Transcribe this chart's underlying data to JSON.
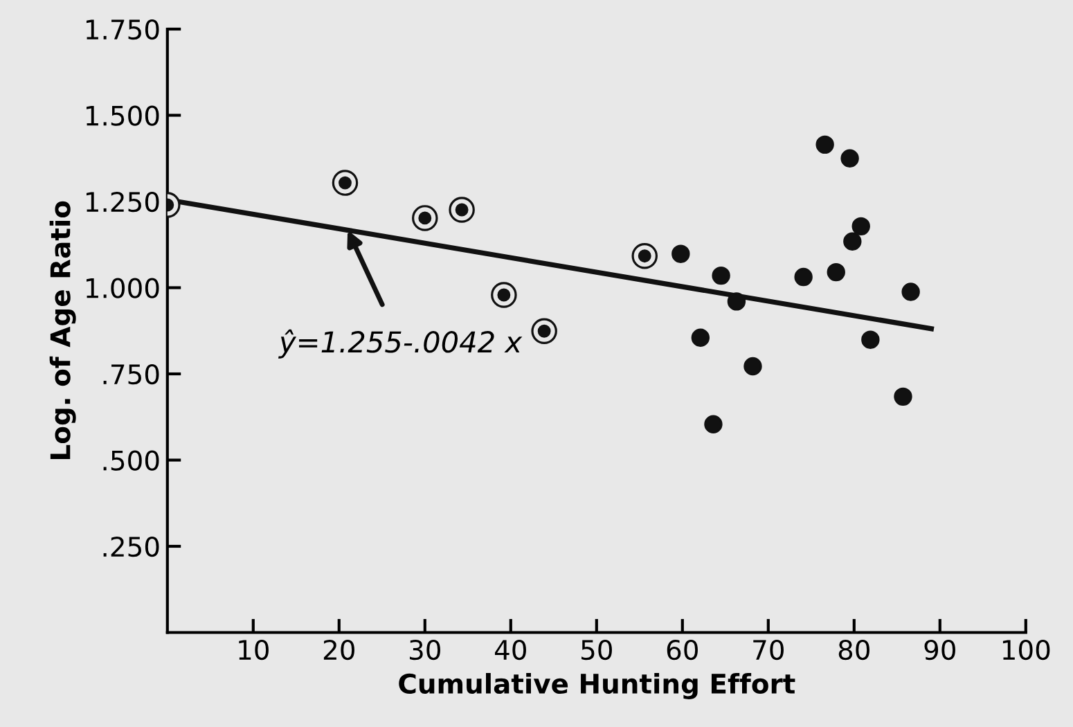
{
  "chart_data": {
    "type": "scatter",
    "xlabel": "Cumulative Hunting Effort",
    "ylabel": "Log. of Age Ratio",
    "series": [
      {
        "marker": "circle",
        "color": "#111111",
        "x": [
          0,
          20.7,
          30.0,
          34.3,
          39.2,
          43.9,
          55.6
        ],
        "values": [
          1.24,
          1.304,
          1.202,
          1.226,
          0.979,
          0.874,
          1.092
        ]
      },
      {
        "marker": "circle",
        "color": "#111111",
        "x": [
          59.8,
          62.1,
          63.6,
          64.5,
          66.3,
          68.2,
          74.1,
          76.6,
          77.9,
          79.5,
          79.8,
          80.8,
          81.9,
          85.7,
          86.6
        ],
        "values": [
          1.098,
          0.855,
          0.604,
          1.035,
          0.96,
          0.772,
          1.031,
          1.415,
          1.045,
          1.375,
          1.134,
          1.178,
          0.849,
          0.684,
          0.988
        ]
      },
      {
        "type": "line",
        "color": "#111111",
        "line_style": "solid",
        "marker": "none",
        "x": [
          0,
          89
        ],
        "values": [
          1.255,
          0.881
        ]
      }
    ],
    "annotations": [
      {
        "text": "ŷ=1.255-.0042 x",
        "x": 21,
        "y": 1.167
      }
    ],
    "xlim": [
      0,
      100
    ],
    "xticks": [
      10,
      20,
      30,
      40,
      50,
      60,
      70,
      80,
      90,
      100
    ],
    "ylim": [
      0,
      1.75
    ],
    "yticks": [
      {
        "value": 0.25,
        "label": ".250"
      },
      {
        "value": 0.5,
        "label": ".500"
      },
      {
        "value": 0.75,
        "label": ".750"
      },
      {
        "value": 1.0,
        "label": "1.000"
      },
      {
        "value": 1.25,
        "label": "1.250"
      },
      {
        "value": 1.5,
        "label": "1.500"
      },
      {
        "value": 1.75,
        "label": "1.750"
      }
    ],
    "grid": false,
    "legend": false
  }
}
